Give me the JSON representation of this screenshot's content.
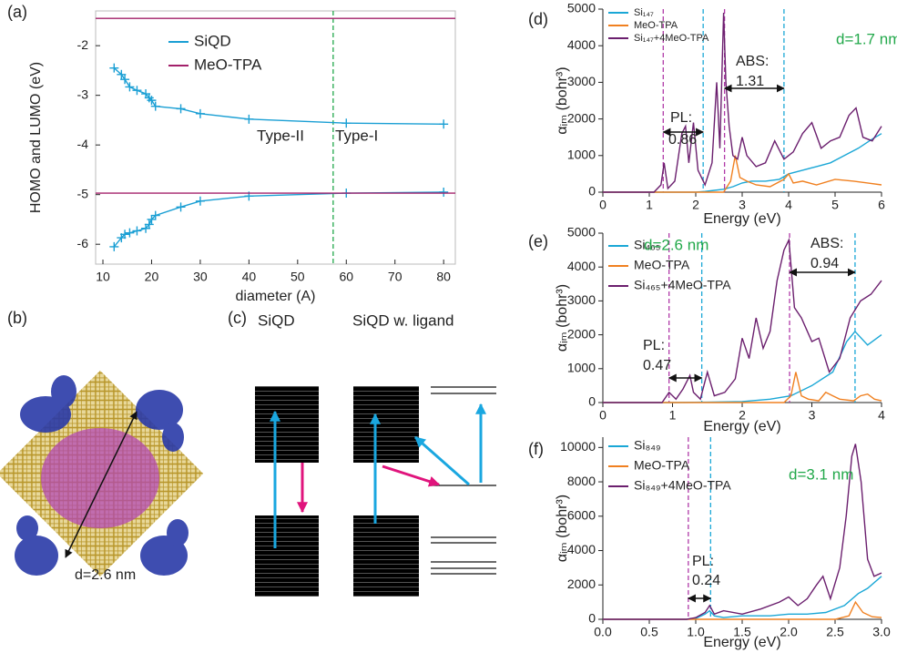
{
  "chart_data": [
    {
      "type": "line",
      "label": "(a)",
      "x_label": "diameter (A)",
      "y_label": "HOMO and LUMO (eV)",
      "xlim": [
        8.5,
        82.4
      ],
      "xticks": [
        10,
        20,
        30,
        40,
        50,
        60,
        70,
        80
      ],
      "ylim": [
        -6.4,
        -1.3
      ],
      "yticks": [
        -2,
        -3,
        -4,
        -5,
        -6
      ],
      "frame": true,
      "legend": "upper left",
      "series": [
        {
          "name": "SiQD",
          "color": "#1a9fd4",
          "marker": "+",
          "x": [
            12.3,
            13.8,
            14.5,
            15.5,
            17,
            18.8,
            19.5,
            20,
            20.8,
            26,
            30,
            40,
            60,
            80,
            null,
            12.3,
            13.8,
            14.5,
            15.5,
            17,
            18.8,
            19.5,
            20,
            20.8,
            26,
            30,
            40,
            60,
            80
          ],
          "values": [
            -2.45,
            -2.58,
            -2.68,
            -2.83,
            -2.9,
            -2.97,
            -3.05,
            -3.1,
            -3.22,
            -3.27,
            -3.37,
            -3.48,
            -3.56,
            -3.58,
            null,
            -6.05,
            -5.87,
            -5.8,
            -5.77,
            -5.73,
            -5.68,
            -5.6,
            -5.5,
            -5.42,
            -5.25,
            -5.13,
            -5.03,
            -4.97,
            -4.95
          ]
        },
        {
          "name": "MeO-TPA",
          "color": "#a3206a",
          "x": [
            8.5,
            82.4,
            null,
            8.5,
            82.4
          ],
          "values": [
            -1.45,
            -1.45,
            null,
            -4.97,
            -4.97
          ]
        }
      ],
      "vlines": [
        {
          "x": 57.3,
          "color": "#22a84a"
        }
      ],
      "annotations": [
        {
          "text": "Type-II"
        },
        {
          "text": "Type-I"
        }
      ]
    },
    {
      "type": "line",
      "label": "(d)",
      "x_label": "Energy (eV)",
      "y_label": "αᵢₘ (bohr³)",
      "xlim": [
        0,
        6
      ],
      "xticks": [
        0,
        1,
        2,
        3,
        4,
        5,
        6
      ],
      "ylim": [
        0,
        5000
      ],
      "yticks": [
        0,
        1000,
        2000,
        3000,
        4000,
        5000
      ],
      "legend": "upper left",
      "series": [
        {
          "name": "Si₁₄₇",
          "color": "#1aa7d6",
          "x": [
            0,
            1.5,
            2.0,
            2.2,
            2.4,
            2.6,
            2.8,
            3.0,
            3.2,
            3.5,
            3.8,
            4.0,
            4.3,
            4.6,
            4.9,
            5.2,
            5.5,
            5.8,
            6.0
          ],
          "values": [
            0,
            0,
            0,
            20,
            50,
            80,
            150,
            250,
            300,
            300,
            350,
            500,
            600,
            700,
            800,
            1000,
            1200,
            1450,
            1600
          ]
        },
        {
          "name": "MeO-TPA",
          "color": "#f08020",
          "x": [
            0,
            2.6,
            2.75,
            2.85,
            2.95,
            3.1,
            3.3,
            3.6,
            3.9,
            4.0,
            4.1,
            4.3,
            4.6,
            5.0,
            5.4,
            5.7,
            6.0
          ],
          "values": [
            0,
            0,
            300,
            1000,
            400,
            300,
            200,
            150,
            350,
            500,
            250,
            300,
            200,
            350,
            300,
            250,
            200
          ]
        },
        {
          "name": "Si₁₄₇+4MeO-TPA",
          "color": "#6b1f6e",
          "x": [
            0,
            1.1,
            1.25,
            1.32,
            1.4,
            1.55,
            1.7,
            1.78,
            1.85,
            1.95,
            2.05,
            2.2,
            2.35,
            2.45,
            2.52,
            2.6,
            2.65,
            2.72,
            2.8,
            2.9,
            3.0,
            3.1,
            3.3,
            3.5,
            3.7,
            3.9,
            4.1,
            4.3,
            4.5,
            4.7,
            4.9,
            5.1,
            5.3,
            5.45,
            5.6,
            5.8,
            6.0
          ],
          "values": [
            0,
            0,
            200,
            800,
            100,
            300,
            1600,
            1800,
            800,
            1900,
            600,
            200,
            800,
            3000,
            1200,
            4900,
            3000,
            1800,
            1000,
            900,
            1500,
            1000,
            700,
            800,
            1400,
            900,
            1100,
            1600,
            1900,
            1200,
            1400,
            1500,
            2100,
            2300,
            1500,
            1400,
            1800
          ]
        }
      ],
      "vlines": [
        {
          "x": 1.3,
          "color": "#b03aa8"
        },
        {
          "x": 2.16,
          "color": "#1aa7d6"
        },
        {
          "x": 2.62,
          "color": "#b03aa8"
        },
        {
          "x": 3.9,
          "color": "#1aa7d6"
        }
      ],
      "annotations": [
        {
          "text": "PL:"
        },
        {
          "text": "0.86"
        },
        {
          "text": "ABS:"
        },
        {
          "text": "1.31"
        },
        {
          "text": "d=1.7 nm",
          "color": "#22a84a"
        }
      ]
    },
    {
      "type": "line",
      "label": "(e)",
      "x_label": "Energy (eV)",
      "y_label": "αᵢₘ (bohr³)",
      "xlim": [
        0,
        4
      ],
      "xticks": [
        0,
        1,
        2,
        3,
        4
      ],
      "ylim": [
        0,
        5000
      ],
      "yticks": [
        0,
        1000,
        2000,
        3000,
        4000,
        5000
      ],
      "legend": "upper left",
      "series": [
        {
          "name": "Si₄₆₅",
          "color": "#1aa7d6",
          "x": [
            0,
            1.0,
            1.5,
            2.0,
            2.4,
            2.7,
            3.0,
            3.3,
            3.5,
            3.62,
            3.8,
            4.0
          ],
          "values": [
            0,
            0,
            10,
            30,
            100,
            200,
            500,
            900,
            1800,
            2100,
            1700,
            2000
          ]
        },
        {
          "name": "MeO-TPA",
          "color": "#f08020",
          "x": [
            0,
            2.6,
            2.7,
            2.77,
            2.85,
            2.95,
            3.1,
            3.2,
            3.3,
            3.4,
            3.6,
            3.7,
            3.8,
            3.9,
            4.0
          ],
          "values": [
            0,
            0,
            200,
            900,
            200,
            100,
            50,
            300,
            200,
            100,
            50,
            200,
            250,
            100,
            50
          ]
        },
        {
          "name": "Si₄₆₅+4MeO-TPA",
          "color": "#6b1f6e",
          "x": [
            0,
            0.85,
            0.95,
            1.05,
            1.15,
            1.25,
            1.3,
            1.4,
            1.5,
            1.6,
            1.75,
            1.9,
            2.0,
            2.1,
            2.2,
            2.3,
            2.4,
            2.5,
            2.6,
            2.67,
            2.75,
            2.85,
            3.0,
            3.1,
            3.25,
            3.4,
            3.55,
            3.7,
            3.85,
            4.0
          ],
          "values": [
            0,
            0,
            300,
            100,
            400,
            800,
            300,
            100,
            900,
            200,
            300,
            700,
            1900,
            1300,
            2500,
            1600,
            2100,
            3600,
            4500,
            4800,
            2800,
            2500,
            1800,
            1900,
            900,
            1300,
            2500,
            3000,
            3200,
            3600
          ]
        }
      ],
      "vlines": [
        {
          "x": 0.95,
          "color": "#b03aa8"
        },
        {
          "x": 1.42,
          "color": "#1aa7d6"
        },
        {
          "x": 2.68,
          "color": "#b03aa8"
        },
        {
          "x": 3.62,
          "color": "#1aa7d6"
        }
      ],
      "annotations": [
        {
          "text": "PL:"
        },
        {
          "text": "0.47"
        },
        {
          "text": "ABS:"
        },
        {
          "text": "0.94"
        },
        {
          "text": "d=2.6 nm",
          "color": "#22a84a"
        }
      ]
    },
    {
      "type": "line",
      "label": "(f)",
      "x_label": "Energy (eV)",
      "y_label": "αᵢₘ (bohr³)",
      "xlim": [
        0,
        3
      ],
      "xticks": [
        {
          "value": 0,
          "label": "0.0"
        },
        0.5,
        {
          "value": 1,
          "label": "1.0"
        },
        1.5,
        {
          "value": 2,
          "label": "2.0"
        },
        2.5,
        {
          "value": 3,
          "label": "3.0"
        }
      ],
      "ylim": [
        0,
        10600
      ],
      "yticks": [
        0,
        2000,
        4000,
        6000,
        8000,
        10000
      ],
      "legend": "upper left",
      "series": [
        {
          "name": "Si₈₄₉",
          "color": "#1aa7d6",
          "x": [
            0,
            0.9,
            1.0,
            1.1,
            1.15,
            1.2,
            1.3,
            1.5,
            1.8,
            2.0,
            2.2,
            2.4,
            2.6,
            2.75,
            2.85,
            3.0
          ],
          "values": [
            0,
            0,
            50,
            300,
            500,
            200,
            100,
            200,
            200,
            300,
            300,
            400,
            800,
            1500,
            1800,
            2500
          ]
        },
        {
          "name": "MeO-TPA",
          "color": "#f08020",
          "x": [
            0,
            2.5,
            2.65,
            2.72,
            2.8,
            2.9,
            3.0
          ],
          "values": [
            0,
            0,
            200,
            1000,
            400,
            150,
            100
          ]
        },
        {
          "name": "Si₈₄₉+4MeO-TPA",
          "color": "#6b1f6e",
          "x": [
            0,
            0.9,
            1.0,
            1.1,
            1.15,
            1.2,
            1.3,
            1.5,
            1.7,
            1.9,
            2.0,
            2.1,
            2.2,
            2.3,
            2.37,
            2.45,
            2.55,
            2.62,
            2.68,
            2.72,
            2.78,
            2.85,
            2.92,
            3.0
          ],
          "values": [
            0,
            0,
            100,
            400,
            800,
            300,
            500,
            300,
            600,
            1000,
            1300,
            800,
            1200,
            2000,
            2500,
            1200,
            3000,
            6000,
            9500,
            10200,
            8000,
            3500,
            2500,
            2700
          ]
        }
      ],
      "vlines": [
        {
          "x": 0.92,
          "color": "#b03aa8"
        },
        {
          "x": 1.16,
          "color": "#1aa7d6"
        }
      ],
      "annotations": [
        {
          "text": "PL:"
        },
        {
          "text": "0.24"
        },
        {
          "text": "d=3.1 nm",
          "color": "#22a84a"
        }
      ]
    }
  ],
  "panel_b": {
    "label": "(b)",
    "annotation": "d=2.6 nm"
  },
  "panel_c": {
    "label": "(c)",
    "titles": [
      "SiQD",
      "SiQD w. ligand"
    ]
  }
}
